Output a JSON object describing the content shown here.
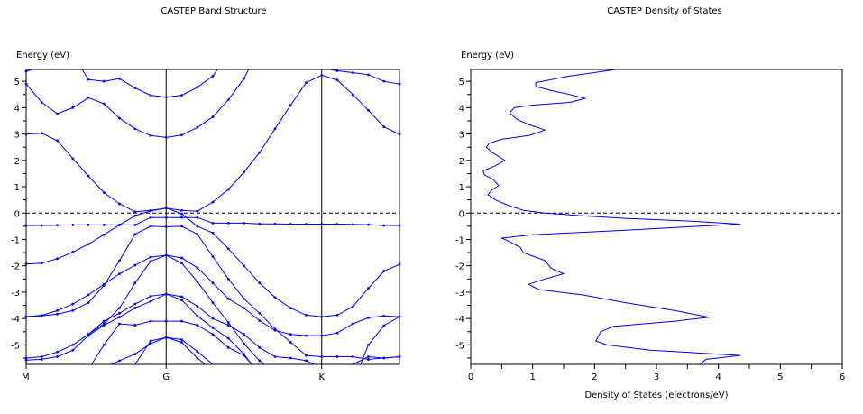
{
  "chart_data": [
    {
      "type": "line",
      "title": "CASTEP Band Structure",
      "ylabel": "Energy (eV)",
      "xlabel": "",
      "ylim": [
        -5.74,
        5.45
      ],
      "xlim": [
        0,
        24
      ],
      "yticks": [
        -5,
        -4,
        -3,
        -2,
        -1,
        0,
        1,
        2,
        3,
        4,
        5
      ],
      "xticks": [
        {
          "label": "M",
          "k": 0
        },
        {
          "label": "G",
          "k": 9
        },
        {
          "label": "K",
          "k": 19
        }
      ],
      "fermi_level": 0,
      "color": "#0000ff",
      "bands": [
        [
          [
            0,
            5.38
          ],
          [
            0.4,
            5.45
          ]
        ],
        [
          [
            0,
            4.9
          ],
          [
            1,
            4.2
          ],
          [
            2,
            3.77
          ],
          [
            3,
            4.0
          ],
          [
            4,
            4.38
          ],
          [
            5,
            4.15
          ],
          [
            6,
            3.6
          ],
          [
            7,
            3.2
          ],
          [
            8,
            2.94
          ],
          [
            9,
            2.87
          ],
          [
            10,
            2.96
          ],
          [
            11,
            3.25
          ],
          [
            12,
            3.65
          ],
          [
            13,
            4.3
          ],
          [
            14,
            5.1
          ],
          [
            14.3,
            5.45
          ]
        ],
        [
          [
            0,
            3.0
          ],
          [
            1,
            3.03
          ],
          [
            2,
            2.75
          ],
          [
            3,
            2.07
          ],
          [
            4,
            1.41
          ],
          [
            5,
            0.78
          ],
          [
            6,
            0.35
          ],
          [
            7,
            0.05
          ],
          [
            8,
            0.1
          ],
          [
            9,
            0.19
          ],
          [
            10,
            0.1
          ],
          [
            11,
            0.07
          ],
          [
            12,
            0.42
          ],
          [
            13,
            0.9
          ],
          [
            14,
            1.55
          ],
          [
            15,
            2.3
          ],
          [
            16,
            3.2
          ],
          [
            17,
            4.1
          ],
          [
            18,
            4.95
          ],
          [
            19,
            5.23
          ],
          [
            20,
            5.05
          ],
          [
            21,
            4.5
          ],
          [
            22,
            3.9
          ],
          [
            23,
            3.27
          ],
          [
            24,
            2.99
          ]
        ],
        [
          [
            3.6,
            5.45
          ],
          [
            4,
            5.07
          ],
          [
            5,
            5.0
          ],
          [
            6,
            5.1
          ],
          [
            7,
            4.75
          ],
          [
            8,
            4.47
          ],
          [
            9,
            4.4
          ],
          [
            10,
            4.47
          ],
          [
            11,
            4.77
          ],
          [
            12,
            5.2
          ],
          [
            12.3,
            5.45
          ]
        ],
        [
          [
            19.5,
            5.45
          ],
          [
            20,
            5.4
          ],
          [
            21,
            5.33
          ],
          [
            22,
            5.25
          ],
          [
            23,
            5.0
          ],
          [
            24,
            4.9
          ]
        ],
        [
          [
            0,
            -0.47
          ],
          [
            1,
            -0.47
          ],
          [
            2,
            -0.46
          ],
          [
            3,
            -0.45
          ],
          [
            4,
            -0.45
          ],
          [
            5,
            -0.45
          ],
          [
            6,
            -0.45
          ],
          [
            7,
            -0.45
          ],
          [
            8,
            -0.17
          ],
          [
            9,
            -0.17
          ],
          [
            10,
            -0.17
          ],
          [
            11,
            -0.17
          ],
          [
            12,
            -0.38
          ],
          [
            13,
            -0.38
          ],
          [
            14,
            -0.38
          ],
          [
            15,
            -0.41
          ],
          [
            16,
            -0.41
          ],
          [
            17,
            -0.42
          ],
          [
            18,
            -0.42
          ],
          [
            19,
            -0.42
          ],
          [
            20,
            -0.42
          ],
          [
            21,
            -0.43
          ],
          [
            22,
            -0.44
          ],
          [
            23,
            -0.47
          ],
          [
            24,
            -0.47
          ]
        ],
        [
          [
            0,
            -1.93
          ],
          [
            1,
            -1.9
          ],
          [
            2,
            -1.73
          ],
          [
            3,
            -1.48
          ],
          [
            4,
            -1.18
          ],
          [
            5,
            -0.82
          ],
          [
            6,
            -0.45
          ],
          [
            7,
            -0.1
          ],
          [
            8,
            0.08
          ],
          [
            9,
            0.19
          ],
          [
            10,
            -0.03
          ],
          [
            11,
            -0.5
          ],
          [
            12,
            -0.75
          ],
          [
            13,
            -1.35
          ],
          [
            14,
            -2.0
          ],
          [
            15,
            -2.65
          ],
          [
            16,
            -3.2
          ],
          [
            17,
            -3.6
          ],
          [
            18,
            -3.87
          ],
          [
            19,
            -3.93
          ],
          [
            20,
            -3.87
          ],
          [
            21,
            -3.55
          ],
          [
            22,
            -2.85
          ],
          [
            23,
            -2.2
          ],
          [
            24,
            -1.95
          ]
        ],
        [
          [
            0,
            -3.93
          ],
          [
            1,
            -3.88
          ],
          [
            2,
            -3.7
          ],
          [
            3,
            -3.45
          ],
          [
            4,
            -3.1
          ],
          [
            5,
            -2.7
          ],
          [
            6,
            -2.3
          ],
          [
            7,
            -1.98
          ],
          [
            8,
            -1.67
          ],
          [
            9,
            -1.6
          ],
          [
            10,
            -1.7
          ],
          [
            11,
            -2.07
          ],
          [
            12,
            -2.65
          ],
          [
            13,
            -3.25
          ],
          [
            14,
            -3.6
          ],
          [
            15,
            -4.08
          ],
          [
            16,
            -4.45
          ],
          [
            17,
            -4.6
          ],
          [
            18,
            -4.65
          ],
          [
            19,
            -4.65
          ],
          [
            20,
            -4.55
          ],
          [
            21,
            -4.2
          ],
          [
            22,
            -3.97
          ],
          [
            23,
            -3.9
          ],
          [
            24,
            -3.93
          ]
        ],
        [
          [
            0,
            -3.93
          ],
          [
            1,
            -3.9
          ],
          [
            2,
            -3.83
          ],
          [
            3,
            -3.7
          ],
          [
            4,
            -3.4
          ],
          [
            5,
            -2.75
          ],
          [
            6,
            -1.8
          ],
          [
            7,
            -0.8
          ],
          [
            8,
            -0.5
          ],
          [
            9,
            -0.52
          ],
          [
            10,
            -0.5
          ],
          [
            11,
            -0.8
          ],
          [
            12,
            -1.65
          ],
          [
            13,
            -2.5
          ],
          [
            14,
            -3.25
          ],
          [
            15,
            -3.8
          ],
          [
            16,
            -4.4
          ],
          [
            17,
            -4.9
          ],
          [
            18,
            -5.4
          ],
          [
            19,
            -5.45
          ],
          [
            20,
            -5.45
          ],
          [
            21,
            -5.45
          ],
          [
            22,
            -5.55
          ],
          [
            23,
            -5.5
          ],
          [
            24,
            -5.45
          ]
        ],
        [
          [
            4,
            -4.6
          ],
          [
            5,
            -4.2
          ],
          [
            6,
            -3.6
          ],
          [
            7,
            -2.65
          ],
          [
            8,
            -1.83
          ],
          [
            9,
            -1.6
          ],
          [
            10,
            -1.9
          ],
          [
            11,
            -2.6
          ],
          [
            12,
            -3.4
          ],
          [
            13,
            -4.15
          ],
          [
            14,
            -4.95
          ],
          [
            15,
            -5.6
          ],
          [
            15.3,
            -5.74
          ]
        ],
        [
          [
            0,
            -5.5
          ],
          [
            1,
            -5.45
          ],
          [
            2,
            -5.27
          ],
          [
            3,
            -5.0
          ],
          [
            4,
            -4.6
          ],
          [
            5,
            -4.1
          ],
          [
            6,
            -3.8
          ],
          [
            7,
            -3.45
          ],
          [
            8,
            -3.15
          ],
          [
            9,
            -3.07
          ],
          [
            10,
            -3.17
          ],
          [
            11,
            -3.53
          ],
          [
            12,
            -4.0
          ],
          [
            13,
            -4.25
          ],
          [
            14,
            -4.6
          ],
          [
            15,
            -5.1
          ],
          [
            16,
            -5.45
          ],
          [
            17,
            -5.5
          ],
          [
            18,
            -5.6
          ],
          [
            18.5,
            -5.74
          ]
        ],
        [
          [
            0,
            -5.58
          ],
          [
            1,
            -5.55
          ],
          [
            2,
            -5.45
          ],
          [
            3,
            -5.2
          ],
          [
            4,
            -4.65
          ],
          [
            5,
            -4.25
          ],
          [
            6,
            -3.95
          ],
          [
            7,
            -3.6
          ],
          [
            8,
            -3.35
          ],
          [
            9,
            -3.07
          ],
          [
            10,
            -3.3
          ],
          [
            11,
            -3.9
          ],
          [
            12,
            -4.35
          ],
          [
            13,
            -4.75
          ],
          [
            14,
            -5.35
          ],
          [
            14.5,
            -5.74
          ]
        ],
        [
          [
            4.2,
            -5.74
          ],
          [
            5,
            -5.0
          ],
          [
            6,
            -4.2
          ],
          [
            7,
            -4.25
          ],
          [
            8,
            -4.1
          ],
          [
            9,
            -4.1
          ],
          [
            10,
            -4.1
          ],
          [
            11,
            -4.25
          ],
          [
            12,
            -4.6
          ],
          [
            13,
            -5.1
          ],
          [
            14,
            -5.4
          ],
          [
            14.5,
            -5.74
          ]
        ],
        [
          [
            5.5,
            -5.74
          ],
          [
            6,
            -5.6
          ],
          [
            7,
            -5.35
          ],
          [
            8,
            -4.95
          ],
          [
            9,
            -4.72
          ],
          [
            10,
            -4.8
          ],
          [
            11,
            -5.25
          ],
          [
            12,
            -5.74
          ]
        ],
        [
          [
            7,
            -5.74
          ],
          [
            8,
            -4.85
          ],
          [
            9,
            -4.72
          ],
          [
            10,
            -4.9
          ],
          [
            11,
            -5.5
          ],
          [
            11.5,
            -5.74
          ]
        ],
        [
          [
            21,
            -5.74
          ],
          [
            22,
            -5.45
          ],
          [
            23,
            -5.5
          ],
          [
            24,
            -5.45
          ]
        ],
        [
          [
            21.5,
            -5.74
          ],
          [
            22,
            -5.0
          ],
          [
            23,
            -4.27
          ],
          [
            24,
            -3.93
          ]
        ]
      ]
    },
    {
      "type": "line",
      "title": "CASTEP Density of States",
      "ylabel": "Energy (eV)",
      "xlabel": "Density of States (electrons/eV)",
      "xlim": [
        0,
        6
      ],
      "ylim": [
        -5.74,
        5.45
      ],
      "xticks": [
        0,
        1,
        2,
        3,
        4,
        5,
        6
      ],
      "yticks": [
        -5,
        -4,
        -3,
        -2,
        -1,
        0,
        1,
        2,
        3,
        4,
        5
      ],
      "fermi_level": 0,
      "color": "#0000ff",
      "points": [
        [
          2.35,
          5.45
        ],
        [
          1.6,
          5.2
        ],
        [
          1.05,
          4.95
        ],
        [
          1.05,
          4.8
        ],
        [
          1.3,
          4.65
        ],
        [
          1.6,
          4.5
        ],
        [
          1.85,
          4.35
        ],
        [
          1.6,
          4.2
        ],
        [
          1.0,
          4.1
        ],
        [
          0.7,
          4.0
        ],
        [
          0.63,
          3.8
        ],
        [
          0.75,
          3.55
        ],
        [
          0.95,
          3.35
        ],
        [
          1.2,
          3.15
        ],
        [
          0.95,
          2.95
        ],
        [
          0.5,
          2.8
        ],
        [
          0.3,
          2.65
        ],
        [
          0.25,
          2.5
        ],
        [
          0.35,
          2.3
        ],
        [
          0.55,
          2.0
        ],
        [
          0.4,
          1.8
        ],
        [
          0.2,
          1.6
        ],
        [
          0.22,
          1.45
        ],
        [
          0.35,
          1.3
        ],
        [
          0.45,
          1.05
        ],
        [
          0.33,
          0.85
        ],
        [
          0.28,
          0.7
        ],
        [
          0.4,
          0.5
        ],
        [
          0.6,
          0.3
        ],
        [
          0.85,
          0.1
        ],
        [
          1.2,
          0.0
        ],
        [
          1.8,
          -0.1
        ],
        [
          2.5,
          -0.2
        ],
        [
          3.5,
          -0.3
        ],
        [
          4.35,
          -0.42
        ],
        [
          3.5,
          -0.52
        ],
        [
          2.5,
          -0.65
        ],
        [
          1.0,
          -0.82
        ],
        [
          0.5,
          -0.95
        ],
        [
          0.6,
          -1.05
        ],
        [
          0.8,
          -1.3
        ],
        [
          0.85,
          -1.5
        ],
        [
          1.2,
          -1.8
        ],
        [
          1.3,
          -2.1
        ],
        [
          1.5,
          -2.3
        ],
        [
          1.2,
          -2.5
        ],
        [
          0.93,
          -2.7
        ],
        [
          1.1,
          -2.9
        ],
        [
          1.8,
          -3.1
        ],
        [
          2.5,
          -3.4
        ],
        [
          3.3,
          -3.7
        ],
        [
          3.85,
          -3.95
        ],
        [
          3.3,
          -4.1
        ],
        [
          2.3,
          -4.3
        ],
        [
          2.1,
          -4.5
        ],
        [
          2.02,
          -4.85
        ],
        [
          2.2,
          -5.0
        ],
        [
          2.9,
          -5.2
        ],
        [
          4.35,
          -5.4
        ],
        [
          3.8,
          -5.55
        ],
        [
          3.7,
          -5.74
        ]
      ]
    }
  ]
}
